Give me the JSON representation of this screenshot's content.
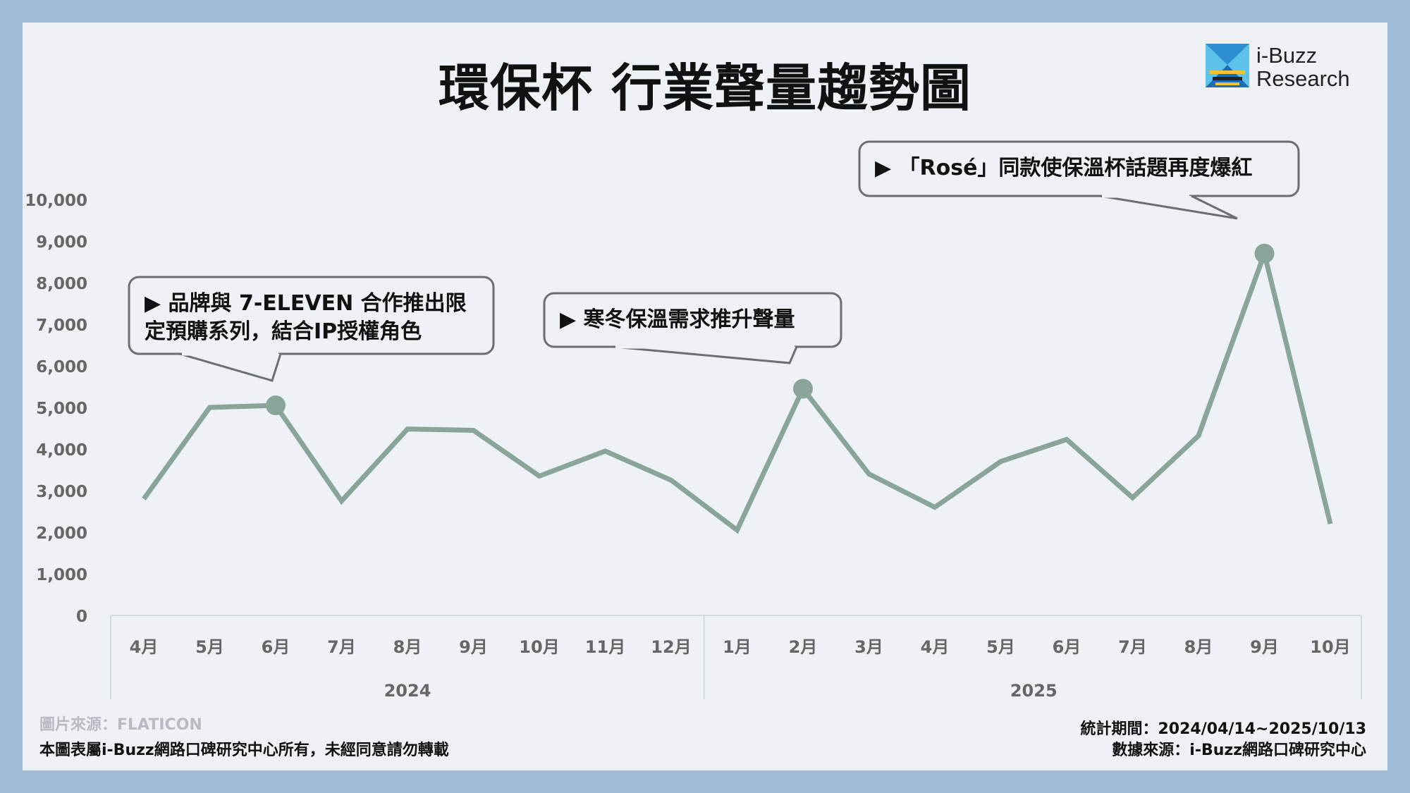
{
  "title": "環保杯 行業聲量趨勢圖",
  "logo": {
    "line1": "i-Buzz",
    "line2": "Research"
  },
  "footer": {
    "image_credit": "圖片來源：FLATICON",
    "copyright": "本圖表屬i-Buzz網路口碑研究中心所有，未經同意請勿轉載",
    "period": "統計期間：2024/04/14~2025/10/13",
    "source": "數據來源：i-Buzz網路口碑研究中心"
  },
  "colors": {
    "line": "#89a59a",
    "background": "#eef2f6",
    "border": "#9dbad6",
    "text": "#111111",
    "axis_text": "#666666"
  },
  "chart_data": {
    "type": "line",
    "title": "環保杯 行業聲量趨勢圖",
    "categories": [
      "4月",
      "5月",
      "6月",
      "7月",
      "8月",
      "9月",
      "10月",
      "11月",
      "12月",
      "1月",
      "2月",
      "3月",
      "4月",
      "5月",
      "6月",
      "7月",
      "8月",
      "9月",
      "10月"
    ],
    "year_groups": [
      {
        "label": "2024",
        "count": 9
      },
      {
        "label": "2025",
        "count": 10
      }
    ],
    "values": [
      2800,
      5000,
      5050,
      2750,
      4480,
      4450,
      3350,
      3950,
      3250,
      2050,
      5450,
      3400,
      2600,
      3700,
      4230,
      2830,
      4320,
      8700,
      2200
    ],
    "ylim": [
      0,
      10000
    ],
    "yticks": [
      "0",
      "1,000",
      "2,000",
      "3,000",
      "4,000",
      "5,000",
      "6,000",
      "7,000",
      "8,000",
      "9,000",
      "10,000"
    ],
    "highlight_points": [
      2,
      10,
      17
    ],
    "annotations": [
      {
        "point": 2,
        "lines": [
          "▶ 品牌與 7-ELEVEN 合作推出限",
          "定預購系列，結合IP授權角色"
        ]
      },
      {
        "point": 10,
        "lines": [
          "▶ 寒冬保溫需求推升聲量"
        ]
      },
      {
        "point": 17,
        "lines": [
          "▶ 「Rosé」同款使保溫杯話題再度爆紅"
        ]
      }
    ],
    "grid": false,
    "legend": "none"
  }
}
